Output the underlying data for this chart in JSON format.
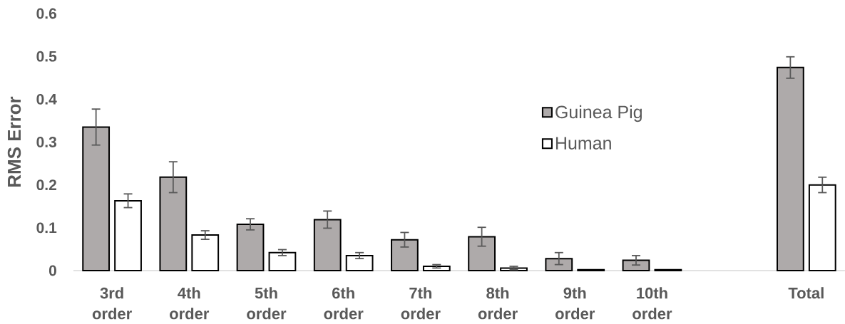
{
  "chart_data": {
    "type": "bar",
    "ylabel": "RMS Error",
    "categories": [
      "3rd order",
      "4th order",
      "5th order",
      "6th order",
      "7th order",
      "8th order",
      "9th order",
      "10th order",
      null,
      "Total"
    ],
    "series": [
      {
        "name": "Guinea Pig",
        "color": "#aeaaaa",
        "values": [
          0.335,
          0.218,
          0.108,
          0.119,
          0.072,
          0.079,
          0.028,
          0.024,
          null,
          0.474
        ],
        "errors": [
          0.042,
          0.036,
          0.013,
          0.02,
          0.017,
          0.022,
          0.014,
          0.011,
          null,
          0.025
        ]
      },
      {
        "name": "Human",
        "color": "#ffffff",
        "values": [
          0.163,
          0.083,
          0.042,
          0.035,
          0.01,
          0.006,
          0.002,
          0.002,
          null,
          0.2
        ],
        "errors": [
          0.016,
          0.01,
          0.007,
          0.007,
          0.004,
          0.004,
          null,
          null,
          null,
          0.018
        ]
      }
    ],
    "ylim": [
      0,
      0.6
    ],
    "yticks": [
      0,
      0.1,
      0.2,
      0.3,
      0.4,
      0.5,
      0.6
    ],
    "legend": "center"
  }
}
